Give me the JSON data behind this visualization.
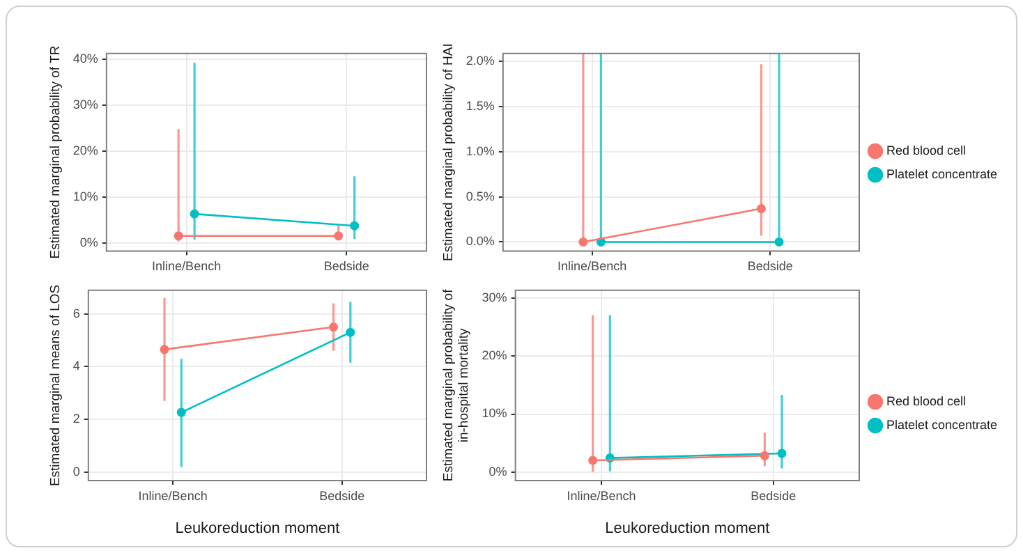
{
  "chart_data": [
    {
      "type": "line",
      "ylabel": "Estimated marginal probability of TR",
      "categories": [
        "Inline/Bench",
        "Bedside"
      ],
      "ylim": [
        -1.8,
        41.3
      ],
      "yticks": [
        {
          "value": 0,
          "label": "0%"
        },
        {
          "value": 10,
          "label": "10%"
        },
        {
          "value": 20,
          "label": "20%"
        },
        {
          "value": 30,
          "label": "30%"
        },
        {
          "value": 40,
          "label": "40%"
        }
      ],
      "grid": true,
      "legend": false,
      "marker": "circle",
      "line_style": "solid",
      "series": [
        {
          "color": "#f8766d",
          "values": [
            1.5,
            1.5
          ],
          "errors": [
            [
              0.3,
              24.8
            ],
            [
              0.5,
              4
            ]
          ]
        },
        {
          "color": "#00bfc4",
          "values": [
            6.3,
            3.7
          ],
          "errors": [
            [
              0.7,
              39.3
            ],
            [
              0.8,
              14.5
            ]
          ]
        }
      ]
    },
    {
      "type": "line",
      "ylabel": "Estimated marginal probability of HAI",
      "categories": [
        "Inline/Bench",
        "Bedside"
      ],
      "ylim": [
        -0.1,
        2.09
      ],
      "yticks": [
        {
          "value": 0,
          "label": "0.0%"
        },
        {
          "value": 0.5,
          "label": "0.5%"
        },
        {
          "value": 1,
          "label": "1.0%"
        },
        {
          "value": 1.5,
          "label": "1.5%"
        },
        {
          "value": 2,
          "label": "2.0%"
        }
      ],
      "grid": true,
      "legend": "right",
      "marker": "circle",
      "line_style": "solid",
      "series": [
        {
          "name": "Red blood cell",
          "color": "#f8766d",
          "values": [
            0,
            0.37
          ],
          "errors": [
            [
              0,
              2.09
            ],
            [
              0.07,
              1.97
            ]
          ]
        },
        {
          "name": "Platelet concentrate",
          "color": "#00bfc4",
          "values": [
            0,
            0
          ],
          "errors": [
            [
              0,
              2.09
            ],
            [
              0,
              2.09
            ]
          ]
        }
      ]
    },
    {
      "type": "line",
      "xlabel": "Leukoreduction moment",
      "ylabel": "Estimated marginal means of LOS",
      "categories": [
        "Inline/Bench",
        "Bedside"
      ],
      "ylim": [
        -0.31,
        6.89
      ],
      "yticks": [
        0,
        2,
        4,
        6
      ],
      "grid": true,
      "legend": false,
      "marker": "circle",
      "line_style": "solid",
      "series": [
        {
          "color": "#f8766d",
          "values": [
            4.65,
            5.5
          ],
          "errors": [
            [
              2.7,
              6.6
            ],
            [
              4.6,
              6.4
            ]
          ]
        },
        {
          "color": "#00bfc4",
          "values": [
            2.27,
            5.3
          ],
          "errors": [
            [
              0.2,
              4.3
            ],
            [
              4.15,
              6.45
            ]
          ]
        }
      ]
    },
    {
      "type": "line",
      "xlabel": "Leukoreduction moment",
      "ylabel": "Estimated marginal probability of in-hospital mortality",
      "categories": [
        "Inline/Bench",
        "Bedside"
      ],
      "ylim": [
        -1.5,
        31.4
      ],
      "yticks": [
        {
          "value": 0,
          "label": "0%"
        },
        {
          "value": 10,
          "label": "10%"
        },
        {
          "value": 20,
          "label": "20%"
        },
        {
          "value": 30,
          "label": "30%"
        }
      ],
      "grid": true,
      "legend": "right",
      "marker": "circle",
      "line_style": "solid",
      "series": [
        {
          "name": "Red blood cell",
          "color": "#f8766d",
          "values": [
            2,
            2.8
          ],
          "errors": [
            [
              0,
              27.1
            ],
            [
              1,
              6.8
            ]
          ]
        },
        {
          "name": "Platelet concentrate",
          "color": "#00bfc4",
          "values": [
            2.4,
            3.2
          ],
          "errors": [
            [
              0.1,
              27.1
            ],
            [
              0.6,
              13.3
            ]
          ]
        }
      ]
    }
  ]
}
